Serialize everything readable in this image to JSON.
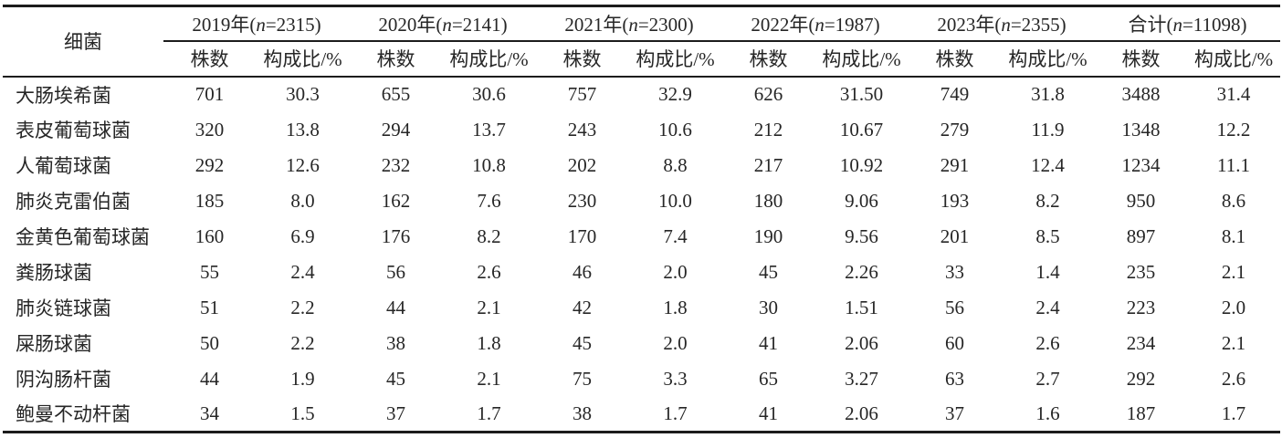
{
  "table": {
    "corner_header": "细菌",
    "year_groups": [
      {
        "prefix": "2019年(",
        "var": "n",
        "suffix": "=2315)"
      },
      {
        "prefix": "2020年(",
        "var": "n",
        "suffix": "=2141)"
      },
      {
        "prefix": "2021年(",
        "var": "n",
        "suffix": "=2300)"
      },
      {
        "prefix": "2022年(",
        "var": "n",
        "suffix": "=1987)"
      },
      {
        "prefix": "2023年(",
        "var": "n",
        "suffix": "=2355)"
      },
      {
        "prefix": "合计(",
        "var": "n",
        "suffix": "=11098)"
      }
    ],
    "sub_headers": {
      "strains": "株数",
      "percent": "构成比/%"
    },
    "rows": [
      {
        "name": "大肠埃希菌",
        "values": [
          "701",
          "30.3",
          "655",
          "30.6",
          "757",
          "32.9",
          "626",
          "31.50",
          "749",
          "31.8",
          "3488",
          "31.4"
        ]
      },
      {
        "name": "表皮葡萄球菌",
        "values": [
          "320",
          "13.8",
          "294",
          "13.7",
          "243",
          "10.6",
          "212",
          "10.67",
          "279",
          "11.9",
          "1348",
          "12.2"
        ]
      },
      {
        "name": "人葡萄球菌",
        "values": [
          "292",
          "12.6",
          "232",
          "10.8",
          "202",
          "8.8",
          "217",
          "10.92",
          "291",
          "12.4",
          "1234",
          "11.1"
        ]
      },
      {
        "name": "肺炎克雷伯菌",
        "values": [
          "185",
          "8.0",
          "162",
          "7.6",
          "230",
          "10.0",
          "180",
          "9.06",
          "193",
          "8.2",
          "950",
          "8.6"
        ]
      },
      {
        "name": "金黄色葡萄球菌",
        "values": [
          "160",
          "6.9",
          "176",
          "8.2",
          "170",
          "7.4",
          "190",
          "9.56",
          "201",
          "8.5",
          "897",
          "8.1"
        ]
      },
      {
        "name": "粪肠球菌",
        "values": [
          "55",
          "2.4",
          "56",
          "2.6",
          "46",
          "2.0",
          "45",
          "2.26",
          "33",
          "1.4",
          "235",
          "2.1"
        ]
      },
      {
        "name": "肺炎链球菌",
        "values": [
          "51",
          "2.2",
          "44",
          "2.1",
          "42",
          "1.8",
          "30",
          "1.51",
          "56",
          "2.4",
          "223",
          "2.0"
        ]
      },
      {
        "name": "屎肠球菌",
        "values": [
          "50",
          "2.2",
          "38",
          "1.8",
          "45",
          "2.0",
          "41",
          "2.06",
          "60",
          "2.6",
          "234",
          "2.1"
        ]
      },
      {
        "name": "阴沟肠杆菌",
        "values": [
          "44",
          "1.9",
          "45",
          "2.1",
          "75",
          "3.3",
          "65",
          "3.27",
          "63",
          "2.7",
          "292",
          "2.6"
        ]
      },
      {
        "name": "鲍曼不动杆菌",
        "values": [
          "34",
          "1.5",
          "37",
          "1.7",
          "38",
          "1.7",
          "41",
          "2.06",
          "37",
          "1.6",
          "187",
          "1.7"
        ]
      }
    ],
    "colors": {
      "text": "#262626",
      "rule": "#1c1c1c",
      "background": "#ffffff"
    }
  }
}
